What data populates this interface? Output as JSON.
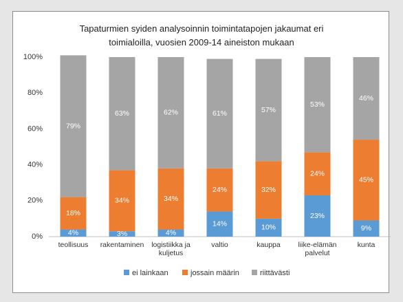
{
  "chart_data": {
    "type": "stacked_bar",
    "title": "Tapaturmien syiden analysoinnin toimintatapojen jakaumat eri toimialoilla, vuosien 2009-14 aineiston mukaan",
    "categories": [
      "teollisuus",
      "rakentaminen",
      "logistiikka ja kuljetus",
      "valtio",
      "kauppa",
      "liike-elämän palvelut",
      "kunta"
    ],
    "series": [
      {
        "name": "ei lainkaan",
        "color": "#5b9bd5",
        "values": [
          4,
          3,
          4,
          14,
          10,
          23,
          9
        ],
        "value_labels": [
          "4%",
          "3%",
          "4%",
          "14%",
          "10%",
          "23%",
          "9%"
        ]
      },
      {
        "name": "jossain määrin",
        "color": "#ed7d31",
        "values": [
          18,
          34,
          34,
          24,
          32,
          24,
          45
        ],
        "value_labels": [
          "18%",
          "34%",
          "34%",
          "24%",
          "32%",
          "24%",
          "45%"
        ]
      },
      {
        "name": "riittävästi",
        "color": "#a5a5a5",
        "values": [
          79,
          63,
          62,
          61,
          57,
          53,
          46
        ],
        "value_labels": [
          "79%",
          "63%",
          "62%",
          "61%",
          "57%",
          "53%",
          "46%"
        ]
      }
    ],
    "ylim": [
      0,
      100
    ],
    "yticks": [
      {
        "value": 0,
        "label": "0%"
      },
      {
        "value": 20,
        "label": "20%"
      },
      {
        "value": 40,
        "label": "40%"
      },
      {
        "value": 60,
        "label": "60%"
      },
      {
        "value": 80,
        "label": "80%"
      },
      {
        "value": 100,
        "label": "100%"
      }
    ],
    "grid": false,
    "legend": "bottom"
  }
}
